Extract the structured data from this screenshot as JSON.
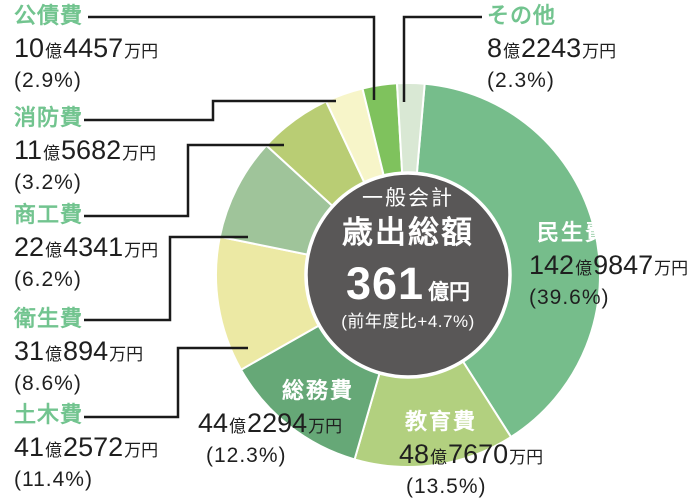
{
  "chart_data": {
    "type": "pie",
    "style": "donut",
    "direction": "clockwise",
    "start_angle_deg": 5,
    "center": {
      "line1": "一般会計",
      "line2": "歳出総額",
      "total_number": "361",
      "total_unit": "億円",
      "yoy": "(前年度比+4.7%)"
    },
    "slices": [
      {
        "key": "minseihi",
        "label": "民生費",
        "amount": "142億9847万円",
        "percent": 39.6,
        "percent_label": "(39.6%)",
        "color": "#76bd8b"
      },
      {
        "key": "kyoikuhi",
        "label": "教育費",
        "amount": "48億7670万円",
        "percent": 13.5,
        "percent_label": "(13.5%)",
        "color": "#b2d07f"
      },
      {
        "key": "somuhi",
        "label": "総務費",
        "amount": "44億2294万円",
        "percent": 12.3,
        "percent_label": "(12.3%)",
        "color": "#66a877"
      },
      {
        "key": "dobokuhi",
        "label": "土木費",
        "amount": "41億2572万円",
        "percent": 11.4,
        "percent_label": "(11.4%)",
        "color": "#ece9a4"
      },
      {
        "key": "eiseihi",
        "label": "衛生費",
        "amount": "31億894万円",
        "percent": 8.6,
        "percent_label": "(8.6%)",
        "color": "#9fc49a"
      },
      {
        "key": "shokohi",
        "label": "商工費",
        "amount": "22億4341万円",
        "percent": 6.2,
        "percent_label": "(6.2%)",
        "color": "#b9cd74"
      },
      {
        "key": "shobohi",
        "label": "消防費",
        "amount": "11億5682万円",
        "percent": 3.2,
        "percent_label": "(3.2%)",
        "color": "#f7f5c9"
      },
      {
        "key": "kosaihi",
        "label": "公債費",
        "amount": "10億4457万円",
        "percent": 2.9,
        "percent_label": "(2.9%)",
        "color": "#7fc25d"
      },
      {
        "key": "sonota",
        "label": "その他",
        "amount": "8億2243万円",
        "percent": 2.3,
        "percent_label": "(2.3%)",
        "color": "#d9e8d4"
      }
    ],
    "colors": {
      "center_circle": "#595757",
      "heading_green": "#72c48f",
      "text_black": "#1f1f1f",
      "leader_line": "#1a1a1a",
      "slice_divider": "#ffffff"
    }
  }
}
